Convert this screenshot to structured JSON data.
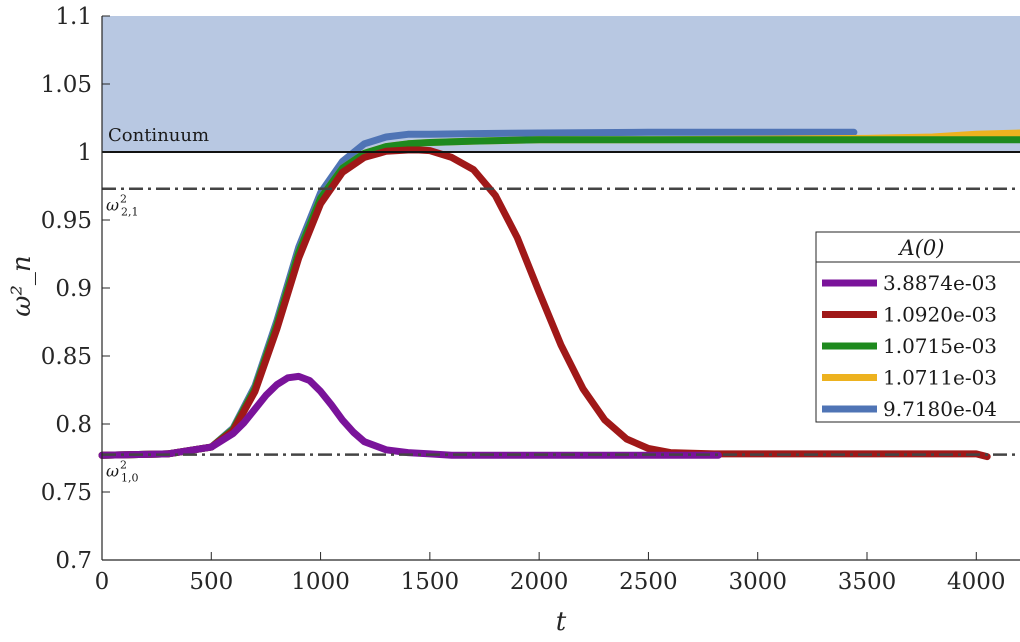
{
  "chart_data": {
    "type": "line",
    "xlabel": "t",
    "ylabel": "ω²_n",
    "xlim": [
      0,
      4200
    ],
    "ylim": [
      0.7,
      1.1
    ],
    "xticks": [
      "0",
      "500",
      "1000",
      "1500",
      "2000",
      "2500",
      "3000",
      "3500",
      "4000"
    ],
    "yticks": [
      "0.7",
      "0.75",
      "0.8",
      "0.85",
      "0.9",
      "0.95",
      "1",
      "1.05",
      "1.1"
    ],
    "grid": false,
    "continuum": {
      "label": "Continuum",
      "from": 1.0,
      "to": 1.1,
      "color": "#b8c8e2"
    },
    "reference_lines": [
      {
        "name": "omega-2-1",
        "label_base": "ω",
        "sup": "2",
        "sub": "2,1",
        "value": 0.973
      },
      {
        "name": "omega-1-0",
        "label_base": "ω",
        "sup": "2",
        "sub": "1,0",
        "value": 0.7775
      }
    ],
    "legend": {
      "title": "A(0)",
      "position": "right"
    },
    "series": [
      {
        "name": "9.7180e-04",
        "color": "#4f74b5",
        "x": [
          0,
          300,
          500,
          600,
          700,
          800,
          900,
          1000,
          1100,
          1200,
          1300,
          1400,
          1500,
          1700,
          2000,
          2500,
          3000,
          3440
        ],
        "y": [
          0.777,
          0.778,
          0.783,
          0.797,
          0.828,
          0.876,
          0.93,
          0.97,
          0.993,
          1.006,
          1.011,
          1.013,
          1.013,
          1.0135,
          1.014,
          1.0145,
          1.0145,
          1.0145
        ]
      },
      {
        "name": "1.0711e-03",
        "color": "#edb21f",
        "x": [
          0,
          300,
          500,
          600,
          700,
          800,
          900,
          1000,
          1100,
          1200,
          1300,
          1400,
          1500,
          1700,
          2000,
          2500,
          3000,
          3500,
          3800,
          4000,
          4200
        ],
        "y": [
          0.777,
          0.778,
          0.783,
          0.796,
          0.826,
          0.873,
          0.926,
          0.966,
          0.988,
          0.999,
          1.004,
          1.006,
          1.007,
          1.008,
          1.009,
          1.009,
          1.0095,
          1.01,
          1.011,
          1.013,
          1.014
        ]
      },
      {
        "name": "1.0715e-03",
        "color": "#1e8a1e",
        "x": [
          0,
          300,
          500,
          600,
          700,
          800,
          900,
          1000,
          1100,
          1200,
          1300,
          1400,
          1500,
          1700,
          2000,
          2500,
          3000,
          3500,
          4000,
          4200
        ],
        "y": [
          0.777,
          0.778,
          0.783,
          0.796,
          0.826,
          0.873,
          0.926,
          0.966,
          0.988,
          0.999,
          1.004,
          1.006,
          1.007,
          1.008,
          1.009,
          1.009,
          1.009,
          1.009,
          1.009,
          1.009
        ]
      },
      {
        "name": "1.0920e-03",
        "color": "#a01818",
        "x": [
          0,
          300,
          500,
          600,
          700,
          800,
          900,
          1000,
          1100,
          1200,
          1300,
          1400,
          1450,
          1500,
          1600,
          1700,
          1800,
          1900,
          2000,
          2100,
          2200,
          2300,
          2400,
          2500,
          2600,
          2800,
          3000,
          3500,
          4000,
          4050
        ],
        "y": [
          0.777,
          0.778,
          0.783,
          0.795,
          0.824,
          0.87,
          0.922,
          0.962,
          0.985,
          0.996,
          1.0005,
          1.0015,
          1.0015,
          1.001,
          0.996,
          0.987,
          0.968,
          0.937,
          0.897,
          0.858,
          0.826,
          0.803,
          0.789,
          0.782,
          0.779,
          0.778,
          0.778,
          0.778,
          0.778,
          0.776
        ]
      },
      {
        "name": "3.8874e-03",
        "color": "#7a139a",
        "x": [
          0,
          300,
          500,
          600,
          650,
          700,
          750,
          800,
          850,
          900,
          950,
          1000,
          1050,
          1100,
          1150,
          1200,
          1300,
          1400,
          1500,
          1600,
          2000,
          2500,
          2820
        ],
        "y": [
          0.777,
          0.778,
          0.783,
          0.793,
          0.801,
          0.811,
          0.821,
          0.829,
          0.834,
          0.835,
          0.832,
          0.824,
          0.814,
          0.803,
          0.794,
          0.787,
          0.781,
          0.779,
          0.778,
          0.777,
          0.777,
          0.777,
          0.777
        ]
      }
    ]
  }
}
